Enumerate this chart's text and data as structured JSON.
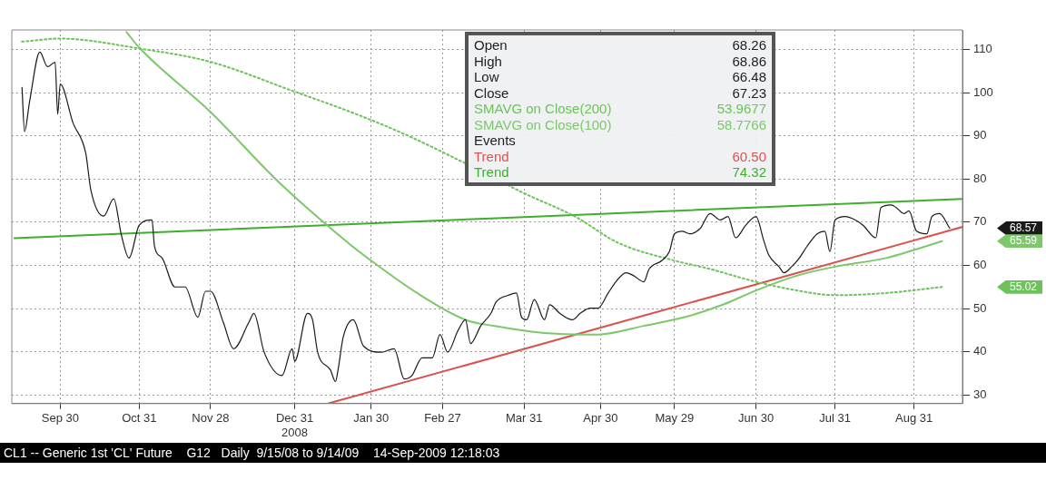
{
  "chart_data": {
    "type": "line",
    "xlim": [
      "2008-09-11",
      "2009-09-19"
    ],
    "xticks": [
      {
        "value": "2008-09-30",
        "label": "Sep 30"
      },
      {
        "value": "2008-10-31",
        "label": "Oct 31"
      },
      {
        "value": "2008-11-28",
        "label": "Nov 28"
      },
      {
        "value": "2008-12-31",
        "label": "Dec 31\n2008"
      },
      {
        "value": "2009-01-30",
        "label": "Jan 30"
      },
      {
        "value": "2009-02-27",
        "label": "Feb 27"
      },
      {
        "value": "2009-03-31",
        "label": "Mar 31"
      },
      {
        "value": "2009-04-30",
        "label": "Apr 30"
      },
      {
        "value": "2009-05-29",
        "label": "May 29"
      },
      {
        "value": "2009-06-30",
        "label": "Jun 30"
      },
      {
        "value": "2009-07-31",
        "label": "Jul 31"
      },
      {
        "value": "2009-08-31",
        "label": "Aug 31"
      }
    ],
    "ylim": [
      28,
      114.5
    ],
    "yticks": [
      30,
      40,
      50,
      60,
      70,
      80,
      90,
      100,
      110
    ],
    "grid": true,
    "legend": "top",
    "marker": "none",
    "series": [
      {
        "color": "#1a1a1a",
        "line_style": "solid",
        "x": [
          "2008-09-15",
          "2008-09-16",
          "2008-09-18",
          "2008-09-22",
          "2008-09-25",
          "2008-09-28",
          "2008-09-29",
          "2008-09-30",
          "2008-10-05",
          "2008-10-10",
          "2008-10-12",
          "2008-10-17",
          "2008-10-21",
          "2008-10-24",
          "2008-10-27",
          "2008-10-31",
          "2008-11-05",
          "2008-11-06",
          "2008-11-09",
          "2008-11-14",
          "2008-11-18",
          "2008-11-23",
          "2008-11-26",
          "2008-11-28",
          "2008-12-03",
          "2008-12-07",
          "2008-12-13",
          "2008-12-15",
          "2008-12-19",
          "2008-12-26",
          "2008-12-30",
          "2008-12-31",
          "2009-01-05",
          "2009-01-07",
          "2009-01-09",
          "2009-01-14",
          "2009-01-16",
          "2009-01-17",
          "2009-01-19",
          "2009-01-23",
          "2009-01-27",
          "2009-02-03",
          "2009-02-08",
          "2009-02-12",
          "2009-02-15",
          "2009-02-19",
          "2009-02-23",
          "2009-02-26",
          "2009-03-01",
          "2009-03-05",
          "2009-03-08",
          "2009-03-10",
          "2009-03-14",
          "2009-03-18",
          "2009-03-20",
          "2009-03-25",
          "2009-03-28",
          "2009-03-30",
          "2009-04-01",
          "2009-04-04",
          "2009-04-08",
          "2009-04-10",
          "2009-04-14",
          "2009-04-19",
          "2009-04-22",
          "2009-04-26",
          "2009-04-29",
          "2009-05-03",
          "2009-05-06",
          "2009-05-10",
          "2009-05-13",
          "2009-05-17",
          "2009-05-19",
          "2009-05-24",
          "2009-05-27",
          "2009-05-29",
          "2009-06-01",
          "2009-06-04",
          "2009-06-08",
          "2009-06-12",
          "2009-06-16",
          "2009-06-19",
          "2009-06-22",
          "2009-06-26",
          "2009-06-30",
          "2009-07-03",
          "2009-07-05",
          "2009-07-09",
          "2009-07-11",
          "2009-07-14",
          "2009-07-17",
          "2009-07-20",
          "2009-07-24",
          "2009-07-27",
          "2009-07-29",
          "2009-07-31",
          "2009-08-04",
          "2009-08-08",
          "2009-08-11",
          "2009-08-16",
          "2009-08-18",
          "2009-08-22",
          "2009-08-24",
          "2009-08-27",
          "2009-08-29",
          "2009-09-01",
          "2009-09-05",
          "2009-09-07",
          "2009-09-10",
          "2009-09-14"
        ],
        "values": [
          101.2,
          91,
          98,
          109.4,
          106,
          107,
          95,
          102,
          93,
          86,
          77.5,
          71.4,
          75.4,
          67,
          61.7,
          69.3,
          70.5,
          64.4,
          61.7,
          55,
          55,
          48,
          54,
          54,
          46.8,
          40.7,
          46.8,
          48.9,
          39.9,
          34.5,
          40.7,
          37.8,
          48.9,
          47.4,
          39.9,
          35.8,
          33.1,
          35.8,
          43.3,
          47.4,
          41.3,
          39.9,
          40.7,
          33.7,
          34.5,
          38.6,
          38.6,
          44,
          39.9,
          44.8,
          47.4,
          41.9,
          46,
          48.9,
          51.5,
          53.1,
          53.6,
          48,
          47.4,
          52.1,
          47.4,
          50.9,
          48.9,
          47.4,
          48.9,
          50.1,
          50.1,
          53.6,
          56.2,
          58.3,
          57.6,
          56.2,
          59.1,
          61.1,
          63.2,
          67.3,
          67.9,
          67.3,
          68.5,
          72,
          70.5,
          71.3,
          66.4,
          69.3,
          71.3,
          65.8,
          62.4,
          59.7,
          58.3,
          59.7,
          61.7,
          64.4,
          67.3,
          67.9,
          63.2,
          70.5,
          71.3,
          70.5,
          69.3,
          66.4,
          73.4,
          74,
          73.4,
          72,
          72.6,
          67.9,
          67.3,
          71.3,
          72,
          68.6
        ]
      },
      {
        "name": "SMAVG on Close(200)",
        "color": "#6cc35a",
        "line_style": "dotted",
        "x": [
          "2008-09-15",
          "2008-09-30",
          "2008-10-31",
          "2008-11-28",
          "2008-12-31",
          "2009-01-22",
          "2009-02-12",
          "2009-03-08",
          "2009-03-31",
          "2009-04-20",
          "2009-05-07",
          "2009-05-29",
          "2009-06-11",
          "2009-06-30",
          "2009-07-16",
          "2009-07-31",
          "2009-08-20",
          "2009-09-11"
        ],
        "values": [
          111.8,
          112.5,
          110.2,
          107.1,
          100.2,
          95.5,
          90.4,
          83.6,
          76.7,
          71.3,
          65.2,
          61.1,
          59.3,
          56.2,
          54.2,
          53.1,
          53.6,
          55
        ]
      },
      {
        "name": "SMAVG on Close(100)",
        "color": "#7cc86a",
        "line_style": "solid",
        "x": [
          "2008-10-26",
          "2008-10-31",
          "2008-11-28",
          "2008-12-24",
          "2009-01-21",
          "2009-01-30",
          "2009-02-17",
          "2009-03-08",
          "2009-03-19",
          "2009-04-07",
          "2009-04-29",
          "2009-05-17",
          "2009-06-02",
          "2009-06-17",
          "2009-06-30",
          "2009-07-16",
          "2009-07-31",
          "2009-08-20",
          "2009-09-11"
        ],
        "values": [
          114,
          110.4,
          95.5,
          79.7,
          65.2,
          61.1,
          53.6,
          47.4,
          46,
          44.4,
          44,
          46,
          48,
          50.9,
          54.2,
          57.6,
          59.7,
          61.7,
          65.6
        ]
      },
      {
        "name": "Trend",
        "color": "#d9534f",
        "line_style": "solid",
        "x": [
          "2009-01-13",
          "2009-09-19"
        ],
        "values": [
          28,
          68.9
        ]
      },
      {
        "name": "Trend",
        "color": "#3fae2c",
        "line_style": "solid",
        "x": [
          "2008-09-12",
          "2009-09-19"
        ],
        "values": [
          66.3,
          75.4
        ]
      }
    ],
    "annotations": [
      "Open",
      "68.26",
      "High",
      "68.86",
      "Low",
      "66.48",
      "Close",
      "67.23",
      "53.9677",
      "58.7766",
      "Events",
      "60.50",
      "74.32",
      "68.57",
      "65.59",
      "55.02",
      "CL1 -- Generic 1st 'CL' Future    G12   Daily  9/15/08 to 9/14/09    14-Sep-2009 12:18:03"
    ]
  }
}
